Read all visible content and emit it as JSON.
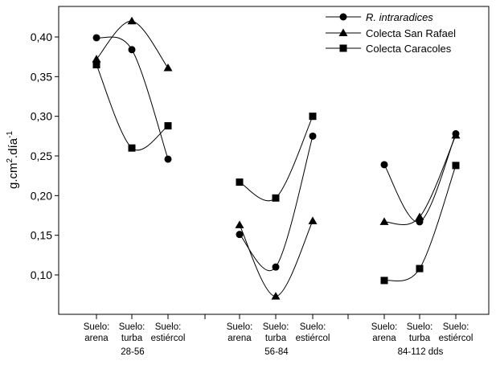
{
  "chart_data": {
    "type": "line",
    "title": "",
    "xlabel": "",
    "ylabel": {
      "main": "g.cm",
      "sup1": "2",
      "mid": ".día",
      "sup2": "-1"
    },
    "ylim": [
      0.05,
      0.45
    ],
    "yticks": [
      "0,10",
      "0,15",
      "0,20",
      "0,25",
      "0,30",
      "0,35",
      "0,40"
    ],
    "grid": false,
    "legend_position": "top-right",
    "groups": [
      {
        "label": "28-56",
        "categories": [
          [
            "Suelo:",
            "arena"
          ],
          [
            "Suelo:",
            "turba"
          ],
          [
            "Suelo:",
            "estiércol"
          ]
        ]
      },
      {
        "label": "56-84",
        "categories": [
          [
            "Suelo:",
            "arena"
          ],
          [
            "Suelo:",
            "turba"
          ],
          [
            "Suelo:",
            "estiércol"
          ]
        ]
      },
      {
        "label": "84-112 dds",
        "categories": [
          [
            "Suelo:",
            "arena"
          ],
          [
            "Suelo:",
            "turba"
          ],
          [
            "Suelo:",
            "estiércol"
          ]
        ]
      }
    ],
    "series": [
      {
        "name": "R. intraradices",
        "marker": "circle",
        "italic": true,
        "values": [
          [
            0.399,
            0.384,
            0.246
          ],
          [
            0.151,
            0.11,
            0.275
          ],
          [
            0.239,
            0.167,
            0.278
          ]
        ]
      },
      {
        "name": "Colecta San Rafael",
        "marker": "triangle",
        "italic": false,
        "values": [
          [
            0.372,
            0.42,
            0.361
          ],
          [
            0.163,
            0.073,
            0.168
          ],
          [
            0.167,
            0.173,
            0.276
          ]
        ]
      },
      {
        "name": "Colecta Caracoles",
        "marker": "square",
        "italic": false,
        "values": [
          [
            0.365,
            0.26,
            0.288
          ],
          [
            0.217,
            0.197,
            0.3
          ],
          [
            0.093,
            0.108,
            0.238
          ]
        ]
      }
    ]
  }
}
